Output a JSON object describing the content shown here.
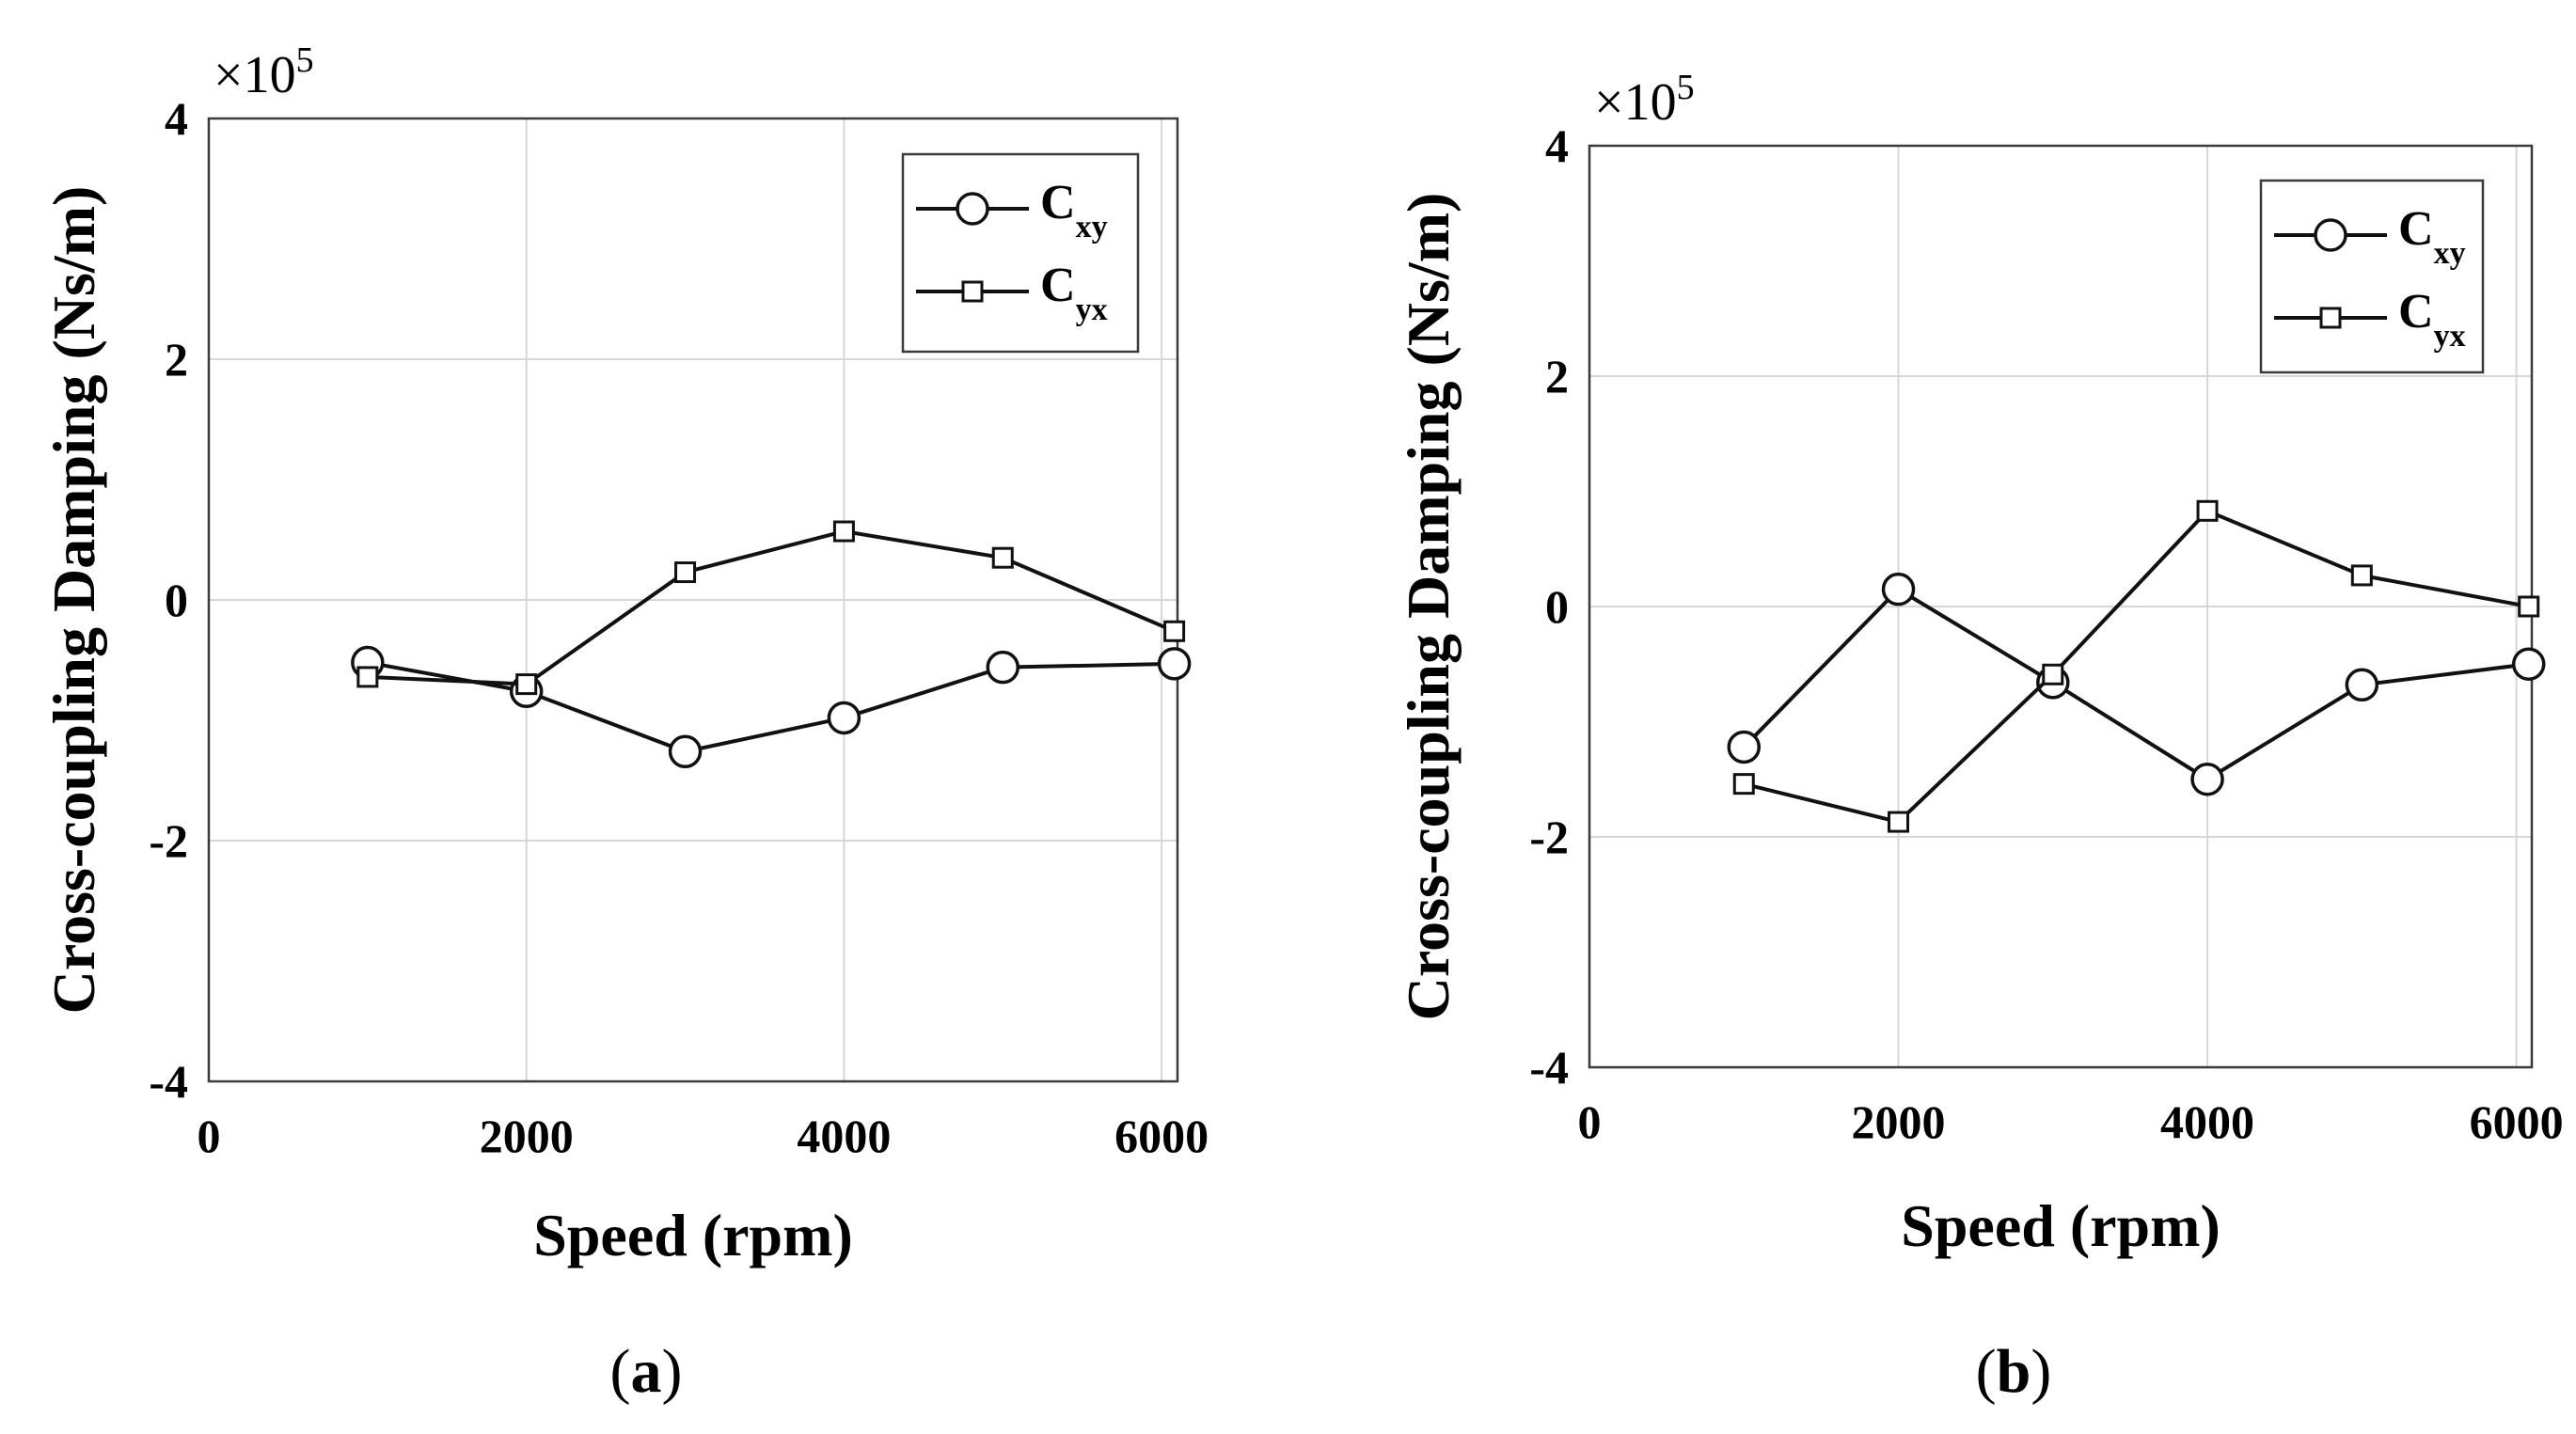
{
  "chart_data": [
    {
      "type": "line",
      "panel_label": "a",
      "title": "",
      "xlabel": "Speed (rpm)",
      "ylabel": "Cross-coupling Damping (Ns/m)",
      "exponent_label": "×10",
      "exponent_power": "5",
      "xlim": [
        0,
        6100
      ],
      "ylim": [
        -4,
        4
      ],
      "xticks": [
        0,
        2000,
        4000,
        6000
      ],
      "xtick_labels": [
        "0",
        "2000",
        "4000",
        "6000"
      ],
      "yticks": [
        -4,
        -2,
        0,
        2,
        4
      ],
      "ytick_labels": [
        "-4",
        "-2",
        "0",
        "2",
        "4"
      ],
      "grid": true,
      "legend_position": "top-right",
      "series": [
        {
          "name": "Cxy",
          "label_main": "C",
          "label_sub": "xy",
          "marker": "circle",
          "x": [
            1000,
            2000,
            3000,
            4000,
            5000,
            6080
          ],
          "values": [
            -0.52,
            -0.76,
            -1.26,
            -0.98,
            -0.56,
            -0.53
          ]
        },
        {
          "name": "Cyx",
          "label_main": "C",
          "label_sub": "yx",
          "marker": "square",
          "x": [
            1000,
            2000,
            3000,
            4000,
            5000,
            6080
          ],
          "values": [
            -0.64,
            -0.7,
            0.23,
            0.57,
            0.35,
            -0.26
          ]
        }
      ]
    },
    {
      "type": "line",
      "panel_label": "b",
      "title": "",
      "xlabel": "Speed (rpm)",
      "ylabel": "Cross-coupling Damping (Ns/m)",
      "exponent_label": "×10",
      "exponent_power": "5",
      "xlim": [
        0,
        6100
      ],
      "ylim": [
        -4,
        4
      ],
      "xticks": [
        0,
        2000,
        4000,
        6000
      ],
      "xtick_labels": [
        "0",
        "2000",
        "4000",
        "6000"
      ],
      "yticks": [
        -4,
        -2,
        0,
        2,
        4
      ],
      "ytick_labels": [
        "-4",
        "-2",
        "0",
        "2",
        "4"
      ],
      "grid": true,
      "legend_position": "top-right",
      "series": [
        {
          "name": "Cxy",
          "label_main": "C",
          "label_sub": "xy",
          "marker": "circle",
          "x": [
            1000,
            2000,
            3000,
            4000,
            5000,
            6080
          ],
          "values": [
            -1.22,
            0.15,
            -0.66,
            -1.5,
            -0.68,
            -0.5
          ]
        },
        {
          "name": "Cyx",
          "label_main": "C",
          "label_sub": "yx",
          "marker": "square",
          "x": [
            1000,
            2000,
            3000,
            4000,
            5000,
            6080
          ],
          "values": [
            -1.54,
            -1.87,
            -0.59,
            0.83,
            0.27,
            0.0
          ]
        }
      ]
    }
  ]
}
